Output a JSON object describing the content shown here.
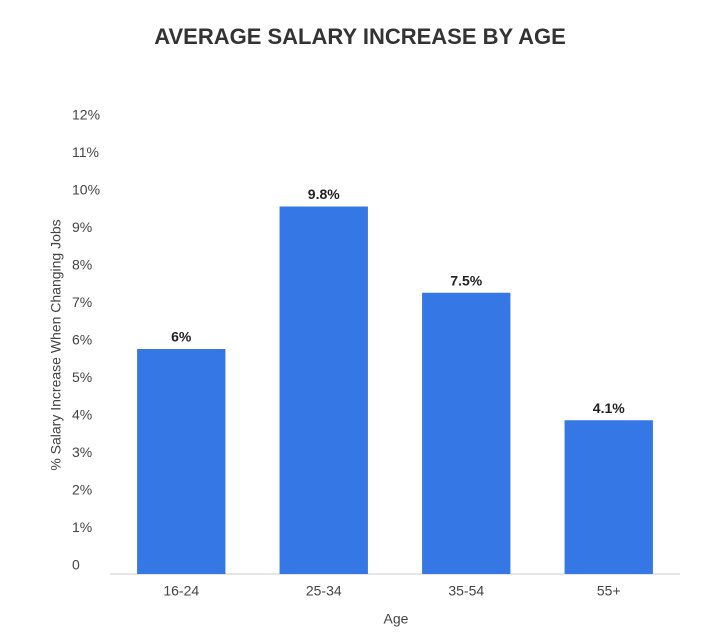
{
  "chart_data": {
    "type": "bar",
    "title": "AVERAGE SALARY INCREASE BY AGE",
    "x_label": "Age",
    "y_label": "% Salary Increase When Changing Jobs",
    "categories": [
      "16-24",
      "25-34",
      "35-54",
      "55+"
    ],
    "values": [
      6,
      9.8,
      7.5,
      4.1
    ],
    "value_labels": [
      "6%",
      "9.8%",
      "7.5%",
      "4.1%"
    ],
    "color": "#3677e6",
    "ylim": [
      0,
      12
    ],
    "yticks": [
      0,
      {
        "value": 1,
        "label": "1%"
      },
      {
        "value": 2,
        "label": "2%"
      },
      {
        "value": 3,
        "label": "3%"
      },
      {
        "value": 4,
        "label": "4%"
      },
      {
        "value": 5,
        "label": "5%"
      },
      {
        "value": 6,
        "label": "6%"
      },
      {
        "value": 7,
        "label": "7%"
      },
      {
        "value": 8,
        "label": "8%"
      },
      {
        "value": 9,
        "label": "9%"
      },
      {
        "value": 10,
        "label": "10%"
      },
      {
        "value": 11,
        "label": "11%"
      },
      {
        "value": 12,
        "label": "12%"
      }
    ],
    "grid": false
  }
}
